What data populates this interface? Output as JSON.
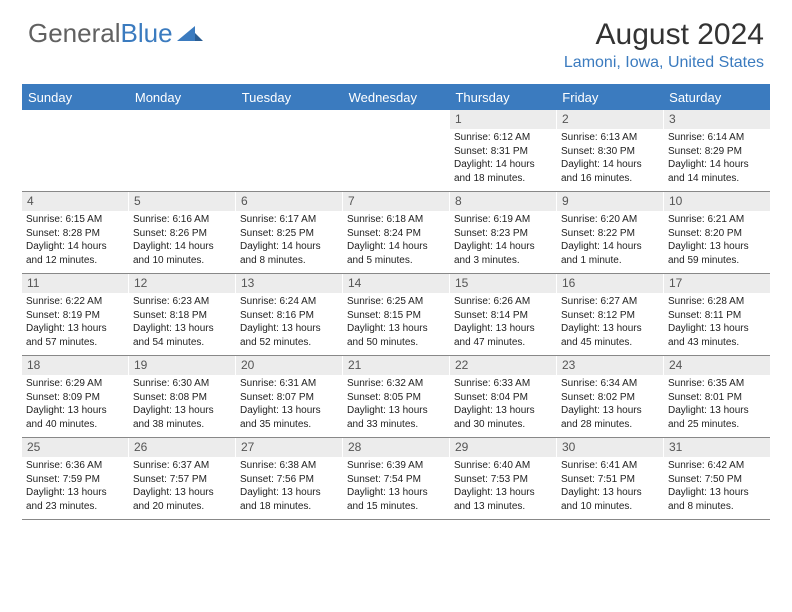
{
  "logo": {
    "text_general": "General",
    "text_blue": "Blue",
    "mark_color": "#3b7bbf"
  },
  "header": {
    "title": "August 2024",
    "location": "Lamoni, Iowa, United States",
    "title_color": "#333333",
    "location_color": "#3b7bbf"
  },
  "theme": {
    "header_bg": "#3b7bbf",
    "header_text": "#ffffff",
    "daynum_bg": "#ececec",
    "daynum_text": "#555555",
    "rule_color": "#888888"
  },
  "weekdays": [
    "Sunday",
    "Monday",
    "Tuesday",
    "Wednesday",
    "Thursday",
    "Friday",
    "Saturday"
  ],
  "weeks": [
    [
      null,
      null,
      null,
      null,
      {
        "n": "1",
        "sunrise": "6:12 AM",
        "sunset": "8:31 PM",
        "daylight": "14 hours and 18 minutes."
      },
      {
        "n": "2",
        "sunrise": "6:13 AM",
        "sunset": "8:30 PM",
        "daylight": "14 hours and 16 minutes."
      },
      {
        "n": "3",
        "sunrise": "6:14 AM",
        "sunset": "8:29 PM",
        "daylight": "14 hours and 14 minutes."
      }
    ],
    [
      {
        "n": "4",
        "sunrise": "6:15 AM",
        "sunset": "8:28 PM",
        "daylight": "14 hours and 12 minutes."
      },
      {
        "n": "5",
        "sunrise": "6:16 AM",
        "sunset": "8:26 PM",
        "daylight": "14 hours and 10 minutes."
      },
      {
        "n": "6",
        "sunrise": "6:17 AM",
        "sunset": "8:25 PM",
        "daylight": "14 hours and 8 minutes."
      },
      {
        "n": "7",
        "sunrise": "6:18 AM",
        "sunset": "8:24 PM",
        "daylight": "14 hours and 5 minutes."
      },
      {
        "n": "8",
        "sunrise": "6:19 AM",
        "sunset": "8:23 PM",
        "daylight": "14 hours and 3 minutes."
      },
      {
        "n": "9",
        "sunrise": "6:20 AM",
        "sunset": "8:22 PM",
        "daylight": "14 hours and 1 minute."
      },
      {
        "n": "10",
        "sunrise": "6:21 AM",
        "sunset": "8:20 PM",
        "daylight": "13 hours and 59 minutes."
      }
    ],
    [
      {
        "n": "11",
        "sunrise": "6:22 AM",
        "sunset": "8:19 PM",
        "daylight": "13 hours and 57 minutes."
      },
      {
        "n": "12",
        "sunrise": "6:23 AM",
        "sunset": "8:18 PM",
        "daylight": "13 hours and 54 minutes."
      },
      {
        "n": "13",
        "sunrise": "6:24 AM",
        "sunset": "8:16 PM",
        "daylight": "13 hours and 52 minutes."
      },
      {
        "n": "14",
        "sunrise": "6:25 AM",
        "sunset": "8:15 PM",
        "daylight": "13 hours and 50 minutes."
      },
      {
        "n": "15",
        "sunrise": "6:26 AM",
        "sunset": "8:14 PM",
        "daylight": "13 hours and 47 minutes."
      },
      {
        "n": "16",
        "sunrise": "6:27 AM",
        "sunset": "8:12 PM",
        "daylight": "13 hours and 45 minutes."
      },
      {
        "n": "17",
        "sunrise": "6:28 AM",
        "sunset": "8:11 PM",
        "daylight": "13 hours and 43 minutes."
      }
    ],
    [
      {
        "n": "18",
        "sunrise": "6:29 AM",
        "sunset": "8:09 PM",
        "daylight": "13 hours and 40 minutes."
      },
      {
        "n": "19",
        "sunrise": "6:30 AM",
        "sunset": "8:08 PM",
        "daylight": "13 hours and 38 minutes."
      },
      {
        "n": "20",
        "sunrise": "6:31 AM",
        "sunset": "8:07 PM",
        "daylight": "13 hours and 35 minutes."
      },
      {
        "n": "21",
        "sunrise": "6:32 AM",
        "sunset": "8:05 PM",
        "daylight": "13 hours and 33 minutes."
      },
      {
        "n": "22",
        "sunrise": "6:33 AM",
        "sunset": "8:04 PM",
        "daylight": "13 hours and 30 minutes."
      },
      {
        "n": "23",
        "sunrise": "6:34 AM",
        "sunset": "8:02 PM",
        "daylight": "13 hours and 28 minutes."
      },
      {
        "n": "24",
        "sunrise": "6:35 AM",
        "sunset": "8:01 PM",
        "daylight": "13 hours and 25 minutes."
      }
    ],
    [
      {
        "n": "25",
        "sunrise": "6:36 AM",
        "sunset": "7:59 PM",
        "daylight": "13 hours and 23 minutes."
      },
      {
        "n": "26",
        "sunrise": "6:37 AM",
        "sunset": "7:57 PM",
        "daylight": "13 hours and 20 minutes."
      },
      {
        "n": "27",
        "sunrise": "6:38 AM",
        "sunset": "7:56 PM",
        "daylight": "13 hours and 18 minutes."
      },
      {
        "n": "28",
        "sunrise": "6:39 AM",
        "sunset": "7:54 PM",
        "daylight": "13 hours and 15 minutes."
      },
      {
        "n": "29",
        "sunrise": "6:40 AM",
        "sunset": "7:53 PM",
        "daylight": "13 hours and 13 minutes."
      },
      {
        "n": "30",
        "sunrise": "6:41 AM",
        "sunset": "7:51 PM",
        "daylight": "13 hours and 10 minutes."
      },
      {
        "n": "31",
        "sunrise": "6:42 AM",
        "sunset": "7:50 PM",
        "daylight": "13 hours and 8 minutes."
      }
    ]
  ],
  "labels": {
    "sunrise": "Sunrise: ",
    "sunset": "Sunset: ",
    "daylight": "Daylight: "
  }
}
